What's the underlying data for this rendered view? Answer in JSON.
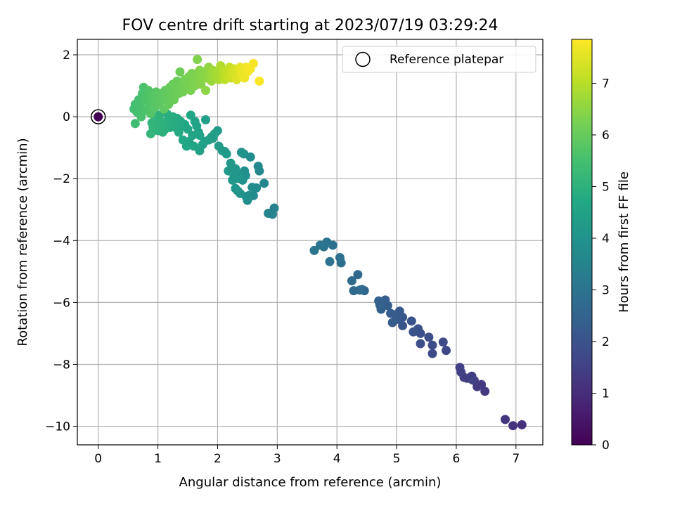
{
  "chart_data": {
    "type": "scatter",
    "title": "FOV centre drift starting at 2023/07/19 03:29:24",
    "xlabel": "Angular distance from reference (arcmin)",
    "ylabel": "Rotation from reference (arcmin)",
    "xlim": [
      -0.35,
      7.45
    ],
    "ylim": [
      -10.6,
      2.5
    ],
    "xticks": [
      0,
      1,
      2,
      3,
      4,
      5,
      6,
      7
    ],
    "yticks": [
      -10,
      -8,
      -6,
      -4,
      -2,
      0,
      2
    ],
    "xtick_labels": [
      "0",
      "1",
      "2",
      "3",
      "4",
      "5",
      "6",
      "7"
    ],
    "ytick_labels": [
      "−10",
      "−8",
      "−6",
      "−4",
      "−2",
      "0",
      "2"
    ],
    "grid": true,
    "legend": {
      "position": "top-right",
      "entries": [
        "Reference platepar"
      ]
    },
    "colorbar": {
      "label": "Hours from first FF file",
      "colormap": "viridis",
      "range": [
        0,
        7.85
      ],
      "ticks": [
        0,
        1,
        2,
        3,
        4,
        5,
        6,
        7
      ],
      "tick_labels": [
        "0",
        "1",
        "2",
        "3",
        "4",
        "5",
        "6",
        "7"
      ]
    },
    "reference_point": {
      "name": "Reference platepar",
      "x": 0,
      "y": 0,
      "hours": 0
    },
    "points": [
      {
        "x": 7.1,
        "y": -9.95,
        "hours": 1.1
      },
      {
        "x": 6.95,
        "y": -9.98,
        "hours": 1.15
      },
      {
        "x": 6.82,
        "y": -9.78,
        "hours": 1.2
      },
      {
        "x": 6.48,
        "y": -8.87,
        "hours": 1.3
      },
      {
        "x": 6.42,
        "y": -8.65,
        "hours": 1.33
      },
      {
        "x": 6.35,
        "y": -8.72,
        "hours": 1.36
      },
      {
        "x": 6.3,
        "y": -8.52,
        "hours": 1.38
      },
      {
        "x": 6.26,
        "y": -8.38,
        "hours": 1.4
      },
      {
        "x": 6.18,
        "y": -8.45,
        "hours": 1.42
      },
      {
        "x": 6.13,
        "y": -8.42,
        "hours": 1.44
      },
      {
        "x": 6.08,
        "y": -8.25,
        "hours": 1.46
      },
      {
        "x": 6.06,
        "y": -8.1,
        "hours": 1.48
      },
      {
        "x": 6.27,
        "y": -8.5,
        "hours": 1.5
      },
      {
        "x": 5.83,
        "y": -7.55,
        "hours": 1.7
      },
      {
        "x": 5.78,
        "y": -7.28,
        "hours": 1.73
      },
      {
        "x": 5.6,
        "y": -7.65,
        "hours": 1.8
      },
      {
        "x": 5.6,
        "y": -7.38,
        "hours": 1.83
      },
      {
        "x": 5.54,
        "y": -7.12,
        "hours": 1.86
      },
      {
        "x": 5.4,
        "y": -7.33,
        "hours": 1.9
      },
      {
        "x": 5.4,
        "y": -7.0,
        "hours": 1.93
      },
      {
        "x": 5.36,
        "y": -6.85,
        "hours": 1.96
      },
      {
        "x": 5.28,
        "y": -6.95,
        "hours": 2.0
      },
      {
        "x": 5.25,
        "y": -6.6,
        "hours": 2.04
      },
      {
        "x": 5.1,
        "y": -6.75,
        "hours": 2.1
      },
      {
        "x": 5.1,
        "y": -6.48,
        "hours": 2.14
      },
      {
        "x": 5.05,
        "y": -6.28,
        "hours": 2.18
      },
      {
        "x": 5.0,
        "y": -6.55,
        "hours": 2.2
      },
      {
        "x": 4.98,
        "y": -6.4,
        "hours": 2.23
      },
      {
        "x": 4.93,
        "y": -6.65,
        "hours": 2.26
      },
      {
        "x": 4.9,
        "y": -6.35,
        "hours": 2.3
      },
      {
        "x": 4.85,
        "y": -6.1,
        "hours": 2.33
      },
      {
        "x": 4.81,
        "y": -5.92,
        "hours": 2.36
      },
      {
        "x": 4.74,
        "y": -6.22,
        "hours": 2.4
      },
      {
        "x": 4.72,
        "y": -6.08,
        "hours": 2.43
      },
      {
        "x": 4.7,
        "y": -5.95,
        "hours": 2.46
      },
      {
        "x": 4.46,
        "y": -5.62,
        "hours": 2.6
      },
      {
        "x": 4.42,
        "y": -5.58,
        "hours": 2.63
      },
      {
        "x": 4.35,
        "y": -5.1,
        "hours": 2.66
      },
      {
        "x": 4.28,
        "y": -5.62,
        "hours": 2.7
      },
      {
        "x": 4.25,
        "y": -5.3,
        "hours": 2.73
      },
      {
        "x": 4.38,
        "y": -5.6,
        "hours": 2.76
      },
      {
        "x": 4.07,
        "y": -4.72,
        "hours": 2.85
      },
      {
        "x": 4.05,
        "y": -4.55,
        "hours": 2.88
      },
      {
        "x": 3.93,
        "y": -4.15,
        "hours": 2.92
      },
      {
        "x": 3.88,
        "y": -4.68,
        "hours": 2.95
      },
      {
        "x": 3.83,
        "y": -4.05,
        "hours": 2.98
      },
      {
        "x": 3.78,
        "y": -4.2,
        "hours": 3.01
      },
      {
        "x": 3.72,
        "y": -4.15,
        "hours": 3.04
      },
      {
        "x": 3.62,
        "y": -4.32,
        "hours": 3.08
      },
      {
        "x": 2.95,
        "y": -2.95,
        "hours": 3.5
      },
      {
        "x": 2.92,
        "y": -3.15,
        "hours": 3.53
      },
      {
        "x": 2.85,
        "y": -3.12,
        "hours": 3.56
      },
      {
        "x": 2.78,
        "y": -2.15,
        "hours": 3.6
      },
      {
        "x": 2.7,
        "y": -1.75,
        "hours": 3.63
      },
      {
        "x": 2.68,
        "y": -1.6,
        "hours": 3.66
      },
      {
        "x": 2.65,
        "y": -2.3,
        "hours": 3.7
      },
      {
        "x": 2.6,
        "y": -2.55,
        "hours": 3.72
      },
      {
        "x": 2.58,
        "y": -2.28,
        "hours": 3.75
      },
      {
        "x": 2.55,
        "y": -1.3,
        "hours": 3.78
      },
      {
        "x": 2.52,
        "y": -2.55,
        "hours": 3.8
      },
      {
        "x": 2.5,
        "y": -2.7,
        "hours": 3.83
      },
      {
        "x": 2.48,
        "y": -2.58,
        "hours": 3.86
      },
      {
        "x": 2.47,
        "y": -1.9,
        "hours": 3.88
      },
      {
        "x": 2.45,
        "y": -1.75,
        "hours": 3.9
      },
      {
        "x": 2.44,
        "y": -1.2,
        "hours": 3.93
      },
      {
        "x": 2.42,
        "y": -2.05,
        "hours": 3.95
      },
      {
        "x": 2.4,
        "y": -1.15,
        "hours": 3.98
      },
      {
        "x": 2.38,
        "y": -2.48,
        "hours": 4.0
      },
      {
        "x": 2.36,
        "y": -1.85,
        "hours": 4.03
      },
      {
        "x": 2.34,
        "y": -2.4,
        "hours": 4.06
      },
      {
        "x": 2.32,
        "y": -2.0,
        "hours": 4.08
      },
      {
        "x": 2.3,
        "y": -2.32,
        "hours": 4.1
      },
      {
        "x": 2.3,
        "y": -1.68,
        "hours": 4.12
      },
      {
        "x": 2.27,
        "y": -1.85,
        "hours": 4.14
      },
      {
        "x": 2.25,
        "y": -2.05,
        "hours": 4.16
      },
      {
        "x": 2.22,
        "y": -1.5,
        "hours": 4.18
      },
      {
        "x": 2.18,
        "y": -1.75,
        "hours": 4.2
      },
      {
        "x": 2.15,
        "y": -1.2,
        "hours": 4.22
      },
      {
        "x": 2.12,
        "y": -1.12,
        "hours": 4.24
      },
      {
        "x": 2.08,
        "y": -1.1,
        "hours": 4.26
      },
      {
        "x": 2.02,
        "y": -0.95,
        "hours": 4.28
      },
      {
        "x": 2.0,
        "y": -0.45,
        "hours": 4.3
      },
      {
        "x": 1.95,
        "y": -0.55,
        "hours": 4.32
      },
      {
        "x": 1.92,
        "y": -0.7,
        "hours": 4.34
      },
      {
        "x": 1.9,
        "y": -0.65,
        "hours": 4.36
      },
      {
        "x": 1.85,
        "y": -0.75,
        "hours": 4.38
      },
      {
        "x": 1.8,
        "y": -0.1,
        "hours": 4.4
      },
      {
        "x": 1.78,
        "y": -0.8,
        "hours": 4.42
      },
      {
        "x": 1.75,
        "y": -0.9,
        "hours": 4.44
      },
      {
        "x": 1.7,
        "y": -0.6,
        "hours": 4.46
      },
      {
        "x": 1.7,
        "y": -1.1,
        "hours": 4.48
      },
      {
        "x": 1.68,
        "y": -0.5,
        "hours": 4.5
      },
      {
        "x": 1.65,
        "y": -0.3,
        "hours": 4.52
      },
      {
        "x": 1.62,
        "y": -0.15,
        "hours": 4.54
      },
      {
        "x": 1.6,
        "y": -0.95,
        "hours": 4.56
      },
      {
        "x": 1.58,
        "y": -0.6,
        "hours": 4.58
      },
      {
        "x": 1.55,
        "y": 0.05,
        "hours": 4.6
      },
      {
        "x": 1.52,
        "y": -0.8,
        "hours": 4.62
      },
      {
        "x": 1.5,
        "y": -0.4,
        "hours": 4.64
      },
      {
        "x": 1.48,
        "y": -0.95,
        "hours": 4.66
      },
      {
        "x": 1.45,
        "y": -0.25,
        "hours": 4.68
      },
      {
        "x": 1.42,
        "y": -0.75,
        "hours": 4.7
      },
      {
        "x": 1.4,
        "y": -0.3,
        "hours": 4.72
      },
      {
        "x": 1.38,
        "y": -0.15,
        "hours": 4.74
      },
      {
        "x": 1.35,
        "y": -0.5,
        "hours": 4.76
      },
      {
        "x": 1.32,
        "y": -0.05,
        "hours": 4.78
      },
      {
        "x": 1.3,
        "y": -0.35,
        "hours": 4.8
      },
      {
        "x": 1.28,
        "y": -0.15,
        "hours": 4.82
      },
      {
        "x": 1.25,
        "y": 0.0,
        "hours": 4.84
      },
      {
        "x": 1.22,
        "y": -0.25,
        "hours": 4.86
      },
      {
        "x": 1.2,
        "y": -0.35,
        "hours": 4.88
      },
      {
        "x": 1.18,
        "y": -0.05,
        "hours": 4.9
      },
      {
        "x": 1.15,
        "y": 0.1,
        "hours": 4.92
      },
      {
        "x": 1.12,
        "y": -0.4,
        "hours": 4.94
      },
      {
        "x": 1.1,
        "y": -0.2,
        "hours": 4.96
      },
      {
        "x": 1.08,
        "y": -0.5,
        "hours": 4.98
      },
      {
        "x": 1.05,
        "y": -0.15,
        "hours": 5.0
      },
      {
        "x": 1.02,
        "y": 0.05,
        "hours": 5.02
      },
      {
        "x": 1.0,
        "y": -0.45,
        "hours": 5.04
      },
      {
        "x": 0.98,
        "y": -0.3,
        "hours": 5.06
      },
      {
        "x": 0.95,
        "y": -0.05,
        "hours": 5.08
      },
      {
        "x": 0.92,
        "y": -0.35,
        "hours": 5.1
      },
      {
        "x": 0.9,
        "y": -0.2,
        "hours": 5.12
      },
      {
        "x": 0.88,
        "y": -0.55,
        "hours": 5.14
      },
      {
        "x": 0.62,
        "y": -0.22,
        "hours": 5.4
      },
      {
        "x": 0.6,
        "y": 0.25,
        "hours": 5.45
      },
      {
        "x": 0.62,
        "y": 0.4,
        "hours": 5.48
      },
      {
        "x": 0.65,
        "y": 0.15,
        "hours": 5.5
      },
      {
        "x": 0.68,
        "y": 0.55,
        "hours": 5.52
      },
      {
        "x": 0.7,
        "y": 0.3,
        "hours": 5.54
      },
      {
        "x": 0.72,
        "y": 0.0,
        "hours": 5.56
      },
      {
        "x": 0.74,
        "y": 0.75,
        "hours": 5.58
      },
      {
        "x": 0.76,
        "y": 0.95,
        "hours": 5.6
      },
      {
        "x": 0.78,
        "y": 0.5,
        "hours": 5.62
      },
      {
        "x": 0.8,
        "y": 0.2,
        "hours": 5.64
      },
      {
        "x": 0.82,
        "y": 0.65,
        "hours": 5.66
      },
      {
        "x": 0.84,
        "y": 0.85,
        "hours": 5.68
      },
      {
        "x": 0.86,
        "y": 0.4,
        "hours": 5.7
      },
      {
        "x": 0.88,
        "y": 0.1,
        "hours": 5.72
      },
      {
        "x": 0.9,
        "y": 0.7,
        "hours": 5.74
      },
      {
        "x": 0.92,
        "y": 0.55,
        "hours": 5.76
      },
      {
        "x": 0.95,
        "y": 0.3,
        "hours": 5.78
      },
      {
        "x": 0.97,
        "y": 0.8,
        "hours": 5.8
      },
      {
        "x": 1.0,
        "y": 0.6,
        "hours": 5.82
      },
      {
        "x": 1.02,
        "y": 0.45,
        "hours": 5.84
      },
      {
        "x": 1.05,
        "y": 0.75,
        "hours": 5.86
      },
      {
        "x": 1.08,
        "y": 0.55,
        "hours": 5.88
      },
      {
        "x": 1.1,
        "y": 0.25,
        "hours": 5.9
      },
      {
        "x": 1.12,
        "y": 0.85,
        "hours": 5.92
      },
      {
        "x": 1.15,
        "y": 0.65,
        "hours": 5.94
      },
      {
        "x": 1.18,
        "y": 0.4,
        "hours": 5.96
      },
      {
        "x": 1.2,
        "y": 0.95,
        "hours": 5.98
      },
      {
        "x": 1.22,
        "y": 0.7,
        "hours": 6.0
      },
      {
        "x": 1.25,
        "y": 1.05,
        "hours": 6.02
      },
      {
        "x": 1.27,
        "y": 0.55,
        "hours": 6.04
      },
      {
        "x": 1.3,
        "y": 0.85,
        "hours": 6.06
      },
      {
        "x": 1.32,
        "y": 1.15,
        "hours": 6.08
      },
      {
        "x": 1.35,
        "y": 0.75,
        "hours": 6.1
      },
      {
        "x": 1.37,
        "y": 1.45,
        "hours": 6.12
      },
      {
        "x": 1.4,
        "y": 1.0,
        "hours": 6.14
      },
      {
        "x": 1.42,
        "y": 0.8,
        "hours": 6.16
      },
      {
        "x": 1.45,
        "y": 1.2,
        "hours": 6.18
      },
      {
        "x": 1.47,
        "y": 0.9,
        "hours": 6.2
      },
      {
        "x": 1.5,
        "y": 1.1,
        "hours": 6.22
      },
      {
        "x": 1.52,
        "y": 1.3,
        "hours": 6.24
      },
      {
        "x": 1.55,
        "y": 0.85,
        "hours": 6.26
      },
      {
        "x": 1.57,
        "y": 1.4,
        "hours": 6.28
      },
      {
        "x": 1.6,
        "y": 1.15,
        "hours": 6.3
      },
      {
        "x": 1.62,
        "y": 1.0,
        "hours": 6.32
      },
      {
        "x": 1.65,
        "y": 1.35,
        "hours": 6.34
      },
      {
        "x": 1.66,
        "y": 1.85,
        "hours": 6.36
      },
      {
        "x": 1.68,
        "y": 1.2,
        "hours": 6.38
      },
      {
        "x": 1.7,
        "y": 1.5,
        "hours": 6.4
      },
      {
        "x": 1.72,
        "y": 1.05,
        "hours": 6.42
      },
      {
        "x": 1.75,
        "y": 1.3,
        "hours": 6.44
      },
      {
        "x": 1.77,
        "y": 1.45,
        "hours": 6.46
      },
      {
        "x": 1.8,
        "y": 0.85,
        "hours": 6.48
      },
      {
        "x": 1.82,
        "y": 1.25,
        "hours": 6.5
      },
      {
        "x": 1.85,
        "y": 1.6,
        "hours": 6.55
      },
      {
        "x": 1.88,
        "y": 1.35,
        "hours": 6.6
      },
      {
        "x": 1.9,
        "y": 1.15,
        "hours": 6.65
      },
      {
        "x": 1.92,
        "y": 1.5,
        "hours": 6.7
      },
      {
        "x": 1.95,
        "y": 1.3,
        "hours": 6.75
      },
      {
        "x": 2.0,
        "y": 1.45,
        "hours": 6.8
      },
      {
        "x": 2.02,
        "y": 1.2,
        "hours": 6.85
      },
      {
        "x": 2.05,
        "y": 1.65,
        "hours": 6.9
      },
      {
        "x": 2.08,
        "y": 1.35,
        "hours": 6.95
      },
      {
        "x": 2.1,
        "y": 1.5,
        "hours": 7.0
      },
      {
        "x": 2.12,
        "y": 1.2,
        "hours": 7.05
      },
      {
        "x": 2.15,
        "y": 1.45,
        "hours": 7.1
      },
      {
        "x": 2.18,
        "y": 1.3,
        "hours": 7.15
      },
      {
        "x": 2.2,
        "y": 1.6,
        "hours": 7.2
      },
      {
        "x": 2.22,
        "y": 1.25,
        "hours": 7.25
      },
      {
        "x": 2.25,
        "y": 1.45,
        "hours": 7.3
      },
      {
        "x": 2.28,
        "y": 1.55,
        "hours": 7.35
      },
      {
        "x": 2.3,
        "y": 1.3,
        "hours": 7.4
      },
      {
        "x": 2.32,
        "y": 1.2,
        "hours": 7.45
      },
      {
        "x": 2.35,
        "y": 1.5,
        "hours": 7.5
      },
      {
        "x": 2.38,
        "y": 1.6,
        "hours": 7.55
      },
      {
        "x": 2.4,
        "y": 1.35,
        "hours": 7.6
      },
      {
        "x": 2.42,
        "y": 1.55,
        "hours": 7.62
      },
      {
        "x": 2.45,
        "y": 1.25,
        "hours": 7.65
      },
      {
        "x": 2.48,
        "y": 1.6,
        "hours": 7.7
      },
      {
        "x": 2.5,
        "y": 1.45,
        "hours": 7.73
      },
      {
        "x": 2.55,
        "y": 1.55,
        "hours": 7.76
      },
      {
        "x": 2.6,
        "y": 1.72,
        "hours": 7.78
      },
      {
        "x": 2.7,
        "y": 1.15,
        "hours": 7.82
      }
    ]
  }
}
